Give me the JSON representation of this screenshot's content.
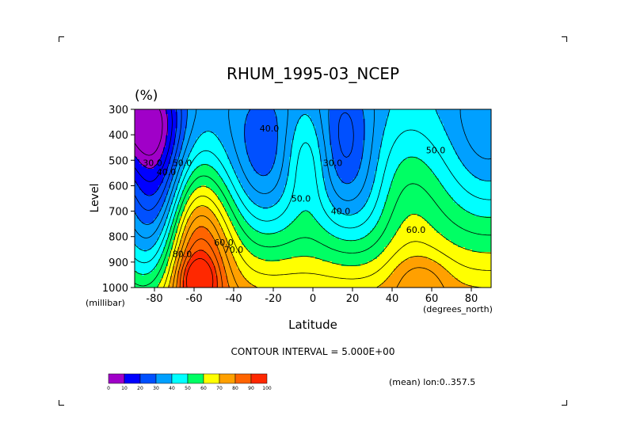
{
  "chart_data": {
    "type": "heatmap",
    "title": "RHUM_1995-03_NCEP",
    "units": "(%)",
    "xlabel": "Latitude",
    "x_unit_note": "(degrees_north)",
    "ylabel": "Level",
    "y_unit_note": "(millibar)",
    "xlim": [
      -90,
      90
    ],
    "ylim": [
      1000,
      300
    ],
    "x_ticks": [
      -80,
      -60,
      -40,
      -20,
      0,
      20,
      40,
      60,
      80
    ],
    "x_tick_labels": [
      "-80",
      "-60",
      "-40",
      "-20",
      "0",
      "20",
      "40",
      "60",
      "80"
    ],
    "y_ticks": [
      300,
      400,
      500,
      600,
      700,
      800,
      900,
      1000
    ],
    "y_tick_labels": [
      "300",
      "400",
      "500",
      "600",
      "700",
      "800",
      "900",
      "1000"
    ],
    "contour_interval_text": "CONTOUR INTERVAL = 5.000E+00",
    "note": "(mean) lon:0..357.5",
    "colorbar": {
      "bounds": [
        0,
        10,
        20,
        30,
        40,
        50,
        60,
        70,
        80,
        90,
        100
      ],
      "labels": [
        "0",
        "10",
        "20",
        "30",
        "40",
        "50",
        "60",
        "70",
        "80",
        "90",
        "100"
      ],
      "colors": [
        "#a000c8",
        "#0000ff",
        "#0050ff",
        "#00a0ff",
        "#00ffff",
        "#00ff64",
        "#ffff00",
        "#ffa000",
        "#ff6400",
        "#ff2800",
        "#ff0000"
      ]
    },
    "contour_labels": [
      {
        "text": "40.0",
        "lat": -22,
        "lev": 375
      },
      {
        "text": "50.0",
        "lat": 62,
        "lev": 460
      },
      {
        "text": "30.0",
        "lat": -81,
        "lev": 510
      },
      {
        "text": "40.0",
        "lat": -74,
        "lev": 545
      },
      {
        "text": "50.0",
        "lat": -66,
        "lev": 510
      },
      {
        "text": "30.0",
        "lat": 10,
        "lev": 510
      },
      {
        "text": "50.0",
        "lat": -6,
        "lev": 650
      },
      {
        "text": "40.0",
        "lat": 14,
        "lev": 700
      },
      {
        "text": "60.0",
        "lat": 52,
        "lev": 773
      },
      {
        "text": "60.0",
        "lat": -45,
        "lev": 822
      },
      {
        "text": "70.0",
        "lat": -40,
        "lev": 850
      },
      {
        "text": "80.0",
        "lat": -66,
        "lev": 868
      }
    ]
  }
}
